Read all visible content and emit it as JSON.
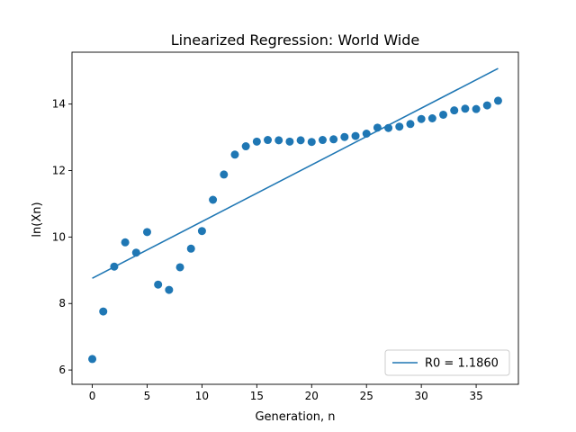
{
  "chart_data": {
    "type": "scatter",
    "title": "Linearized Regression: World Wide",
    "xlabel": "Generation, n",
    "ylabel": "ln(Xn)",
    "xlim": [
      -1.85,
      38.85
    ],
    "ylim": [
      5.57,
      15.56
    ],
    "x_ticks": [
      0,
      5,
      10,
      15,
      20,
      25,
      30,
      35
    ],
    "y_ticks": [
      6,
      8,
      10,
      12,
      14
    ],
    "grid": false,
    "legend_position": "lower right",
    "series": [
      {
        "kind": "scatter",
        "color": "#1f77b4",
        "points": [
          [
            0,
            6.33
          ],
          [
            1,
            7.76
          ],
          [
            2,
            9.11
          ],
          [
            3,
            9.84
          ],
          [
            4,
            9.53
          ],
          [
            5,
            10.15
          ],
          [
            6,
            8.57
          ],
          [
            7,
            8.41
          ],
          [
            8,
            9.09
          ],
          [
            9,
            9.65
          ],
          [
            10,
            10.18
          ],
          [
            11,
            11.12
          ],
          [
            12,
            11.88
          ],
          [
            13,
            12.48
          ],
          [
            14,
            12.73
          ],
          [
            15,
            12.87
          ],
          [
            16,
            12.92
          ],
          [
            17,
            12.91
          ],
          [
            18,
            12.87
          ],
          [
            19,
            12.91
          ],
          [
            20,
            12.86
          ],
          [
            21,
            12.92
          ],
          [
            22,
            12.94
          ],
          [
            23,
            13.01
          ],
          [
            24,
            13.04
          ],
          [
            25,
            13.11
          ],
          [
            26,
            13.29
          ],
          [
            27,
            13.28
          ],
          [
            28,
            13.32
          ],
          [
            29,
            13.4
          ],
          [
            30,
            13.55
          ],
          [
            31,
            13.57
          ],
          [
            32,
            13.68
          ],
          [
            33,
            13.81
          ],
          [
            34,
            13.86
          ],
          [
            35,
            13.85
          ],
          [
            36,
            13.96
          ],
          [
            37,
            14.1
          ]
        ]
      },
      {
        "kind": "line",
        "name": "R0 = 1.1860",
        "color": "#1f77b4",
        "points": [
          [
            0,
            8.76
          ],
          [
            37,
            15.07
          ]
        ]
      }
    ]
  }
}
